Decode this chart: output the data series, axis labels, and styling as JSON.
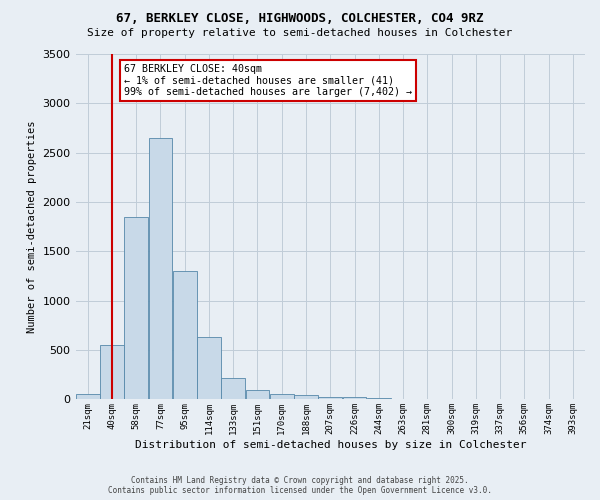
{
  "title1": "67, BERKLEY CLOSE, HIGHWOODS, COLCHESTER, CO4 9RZ",
  "title2": "Size of property relative to semi-detached houses in Colchester",
  "xlabel": "Distribution of semi-detached houses by size in Colchester",
  "ylabel": "Number of semi-detached properties",
  "annotation_title": "67 BERKLEY CLOSE: 40sqm",
  "annotation_line1": "← 1% of semi-detached houses are smaller (41)",
  "annotation_line2": "99% of semi-detached houses are larger (7,402) →",
  "footer1": "Contains HM Land Registry data © Crown copyright and database right 2025.",
  "footer2": "Contains public sector information licensed under the Open Government Licence v3.0.",
  "bin_labels": [
    "21sqm",
    "40sqm",
    "58sqm",
    "77sqm",
    "95sqm",
    "114sqm",
    "133sqm",
    "151sqm",
    "170sqm",
    "188sqm",
    "207sqm",
    "226sqm",
    "244sqm",
    "263sqm",
    "281sqm",
    "300sqm",
    "319sqm",
    "337sqm",
    "356sqm",
    "374sqm",
    "393sqm"
  ],
  "bar_heights": [
    50,
    550,
    1850,
    2650,
    1300,
    630,
    220,
    100,
    55,
    40,
    25,
    20,
    10,
    5,
    3,
    2,
    1,
    1,
    0,
    0,
    0
  ],
  "bar_color": "#c8d9e8",
  "bar_edgecolor": "#5588aa",
  "marker_index": 1,
  "marker_color": "#cc0000",
  "ylim": [
    0,
    3500
  ],
  "bg_color": "#e8eef4",
  "plot_bg_color": "#e8eef4",
  "grid_color": "#c0ccd8"
}
